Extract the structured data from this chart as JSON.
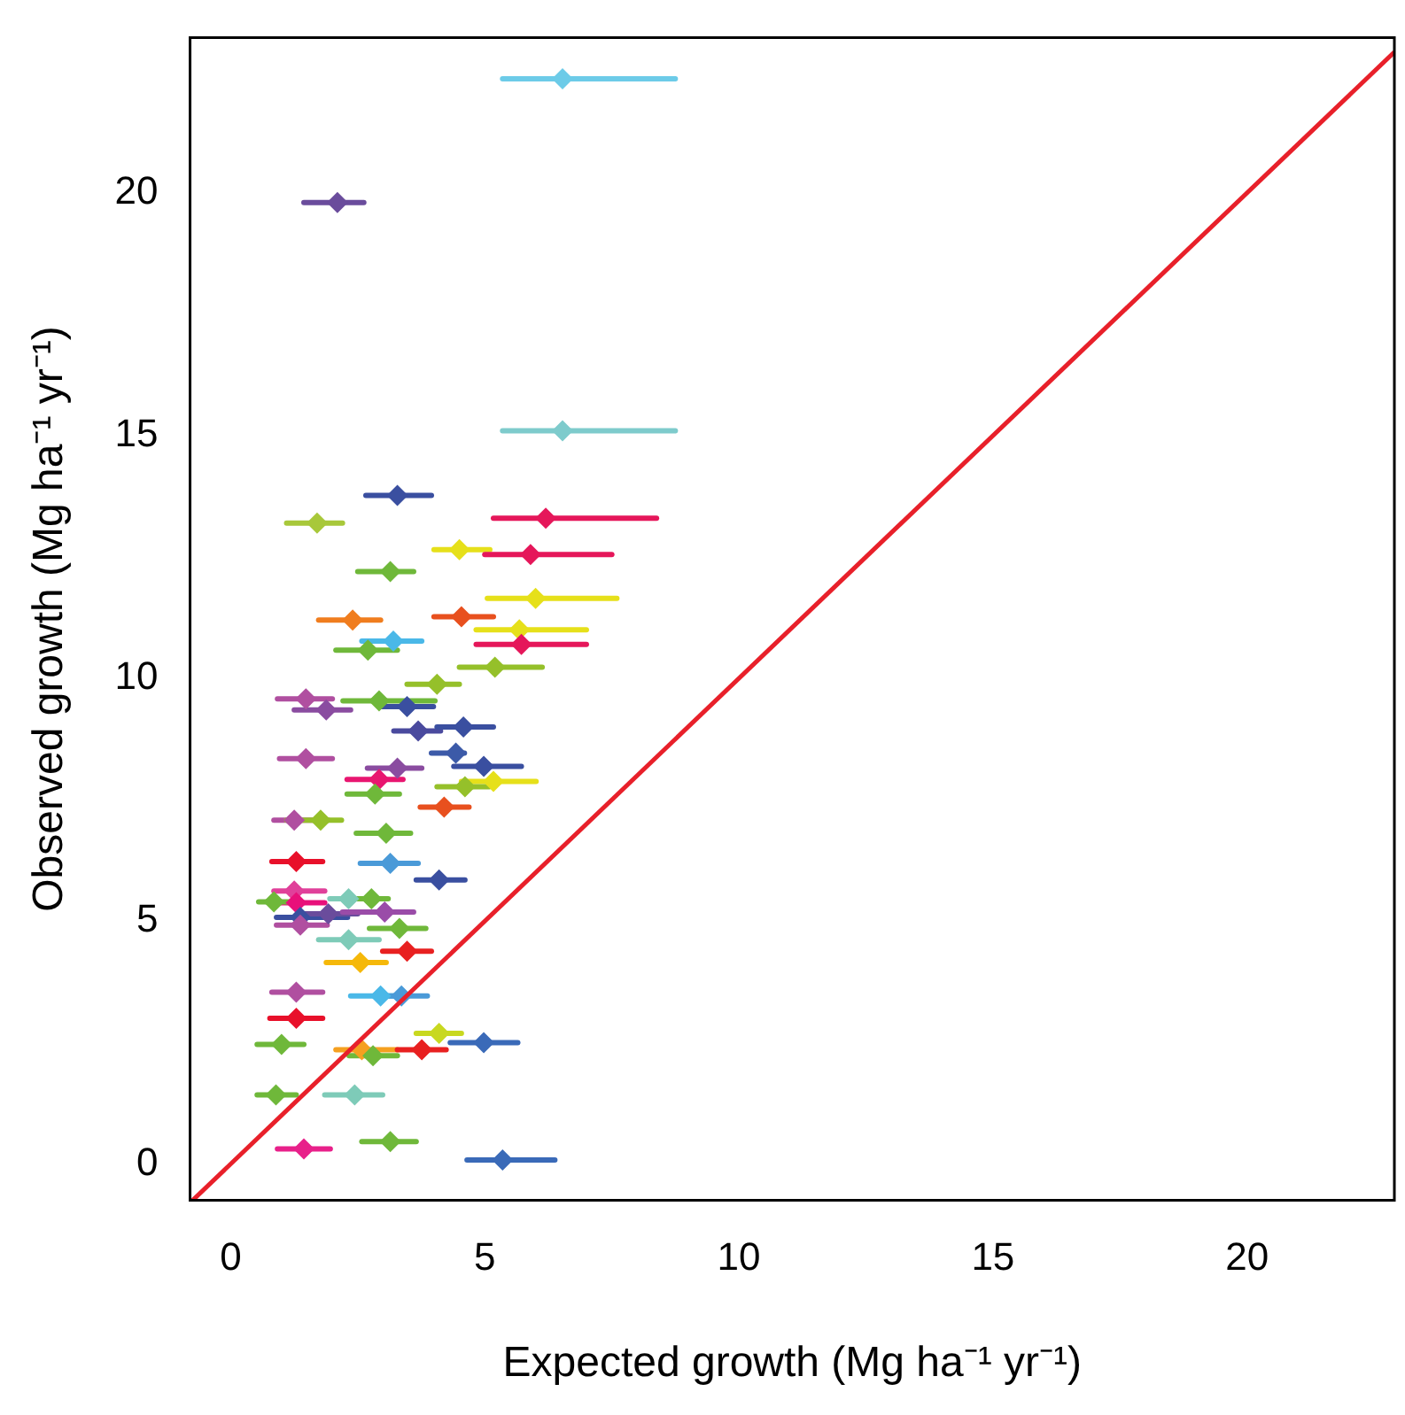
{
  "chart_data": {
    "type": "scatter",
    "xlabel": "Expected growth (Mg ha⁻¹ yr⁻¹)",
    "ylabel": "Observed growth (Mg ha⁻¹ yr⁻¹)",
    "xlim": [
      -0.8,
      22.9
    ],
    "ylim": [
      -0.75,
      23.2
    ],
    "xticks": [
      0,
      5,
      10,
      15,
      20
    ],
    "yticks": [
      0,
      5,
      10,
      15,
      20
    ],
    "grid": false,
    "legend": false,
    "series": [
      {
        "marker": "diamond",
        "x": [
          6.53,
          2.1,
          6.53,
          3.28,
          1.7,
          6.2,
          4.5,
          5.9,
          3.14,
          6.0,
          2.4,
          4.54,
          5.68,
          3.2,
          5.72,
          2.7,
          5.2,
          4.06,
          1.48,
          2.92,
          3.47,
          1.88,
          3.69,
          4.58,
          1.48,
          4.43,
          4.98,
          3.28,
          5.17,
          4.61,
          2.92,
          2.84,
          4.2,
          1.25,
          1.77,
          3.06,
          3.14,
          1.29,
          4.1,
          1.25,
          1.29,
          1.37,
          1.92,
          2.32,
          2.77,
          3.03,
          0.85,
          1.37,
          3.32,
          2.32,
          3.47,
          2.55,
          2.95,
          3.36,
          1.29,
          1.29,
          4.1,
          4.98,
          1.0,
          2.58,
          2.8,
          3.76,
          0.89,
          2.44,
          1.44,
          3.14,
          5.35
        ],
        "values": [
          22.35,
          19.8,
          15.1,
          13.77,
          13.2,
          13.3,
          12.65,
          12.55,
          12.2,
          11.65,
          11.2,
          11.27,
          11.0,
          10.77,
          10.7,
          10.58,
          10.23,
          9.88,
          9.58,
          9.54,
          9.42,
          9.35,
          8.92,
          9.0,
          8.35,
          8.46,
          8.19,
          8.15,
          7.88,
          7.77,
          7.92,
          7.62,
          7.35,
          7.08,
          7.08,
          6.81,
          6.19,
          6.23,
          5.85,
          5.62,
          5.38,
          5.08,
          5.15,
          5.46,
          5.46,
          5.19,
          5.4,
          4.92,
          4.85,
          4.62,
          4.38,
          4.15,
          3.46,
          3.46,
          3.54,
          3.0,
          2.69,
          2.5,
          2.46,
          2.35,
          2.23,
          2.35,
          1.42,
          1.42,
          0.31,
          0.46,
          0.08
        ],
        "xerrors": [
          [
            5.35,
            8.75
          ],
          [
            1.44,
            2.62
          ],
          [
            5.35,
            8.75
          ],
          [
            2.66,
            3.95
          ],
          [
            1.1,
            2.2
          ],
          [
            5.17,
            8.38
          ],
          [
            4.0,
            5.1
          ],
          [
            5.0,
            7.5
          ],
          [
            2.5,
            3.6
          ],
          [
            5.05,
            7.6
          ],
          [
            1.73,
            2.95
          ],
          [
            4.0,
            5.17
          ],
          [
            4.83,
            7.0
          ],
          [
            2.58,
            3.76
          ],
          [
            4.83,
            7.0
          ],
          [
            2.07,
            3.28
          ],
          [
            4.5,
            6.13
          ],
          [
            3.47,
            4.5
          ],
          [
            0.92,
            2.0
          ],
          [
            2.21,
            4.02
          ],
          [
            2.95,
            3.99
          ],
          [
            1.25,
            2.36
          ],
          [
            3.21,
            4.13
          ],
          [
            4.06,
            5.17
          ],
          [
            0.96,
            2.0
          ],
          [
            3.95,
            4.6
          ],
          [
            4.39,
            5.72
          ],
          [
            2.69,
            3.76
          ],
          [
            4.54,
            6.01
          ],
          [
            4.06,
            5.09
          ],
          [
            2.29,
            3.39
          ],
          [
            2.29,
            3.32
          ],
          [
            3.73,
            4.69
          ],
          [
            0.85,
            1.92
          ],
          [
            1.1,
            2.18
          ],
          [
            2.47,
            3.54
          ],
          [
            2.55,
            3.69
          ],
          [
            0.81,
            1.81
          ],
          [
            3.65,
            4.61
          ],
          [
            0.85,
            1.85
          ],
          [
            0.85,
            1.85
          ],
          [
            0.9,
            2.3
          ],
          [
            1.4,
            2.5
          ],
          [
            1.95,
            2.9
          ],
          [
            2.4,
            3.1
          ],
          [
            2.2,
            3.6
          ],
          [
            0.55,
            1.3
          ],
          [
            0.9,
            1.9
          ],
          [
            2.73,
            3.84
          ],
          [
            1.73,
            2.92
          ],
          [
            2.99,
            3.95
          ],
          [
            1.88,
            3.06
          ],
          [
            2.36,
            3.28
          ],
          [
            2.99,
            3.87
          ],
          [
            0.81,
            1.81
          ],
          [
            0.77,
            1.81
          ],
          [
            3.65,
            4.54
          ],
          [
            4.32,
            5.65
          ],
          [
            0.52,
            1.44
          ],
          [
            2.07,
            3.28
          ],
          [
            2.33,
            3.28
          ],
          [
            3.28,
            4.24
          ],
          [
            0.52,
            1.29
          ],
          [
            1.85,
            2.99
          ],
          [
            0.92,
            1.96
          ],
          [
            2.58,
            3.65
          ],
          [
            4.65,
            6.38
          ]
        ],
        "colors": [
          "#6ccbe8",
          "#6a4c9c",
          "#7ecbcc",
          "#3a4fa0",
          "#a8c83a",
          "#e5175a",
          "#e6e01a",
          "#e5175a",
          "#6fb83a",
          "#e6e01a",
          "#f07d1e",
          "#e8501e",
          "#e6e01a",
          "#4ab8e8",
          "#e5175a",
          "#6fb83a",
          "#95c02a",
          "#95c02a",
          "#b04fa0",
          "#6fb83a",
          "#3a4fa0",
          "#8a4ca0",
          "#4a4a9e",
          "#3a4fa0",
          "#b04fa0",
          "#3c5aa8",
          "#3a4fa0",
          "#8a4ca0",
          "#e6e01a",
          "#95c02a",
          "#e81670",
          "#6fb83a",
          "#e8501e",
          "#b04fa0",
          "#95c02a",
          "#6fb83a",
          "#4a9ad8",
          "#e8102a",
          "#3a4fa0",
          "#e0409a",
          "#e8107a",
          "#3a4fa0",
          "#6a4c9c",
          "#7ecbb8",
          "#6fb83a",
          "#9a4ca8",
          "#6fb83a",
          "#b04fa0",
          "#6fb83a",
          "#7ecbb8",
          "#e82020",
          "#f5b80a",
          "#4ab8e8",
          "#4a9ad8",
          "#b04fa0",
          "#e8102a",
          "#c8d820",
          "#3a6ab8",
          "#6fb83a",
          "#f5a020",
          "#6fb83a",
          "#e82020",
          "#6fb83a",
          "#7ecbb8",
          "#e8208a",
          "#6fb83a",
          "#3a6ab8"
        ]
      },
      {
        "type": "line",
        "marker": "none",
        "x": [
          -0.75,
          22.9
        ],
        "values": [
          -0.75,
          22.9
        ],
        "color": "#e8202a",
        "line_style": "solid"
      }
    ]
  }
}
